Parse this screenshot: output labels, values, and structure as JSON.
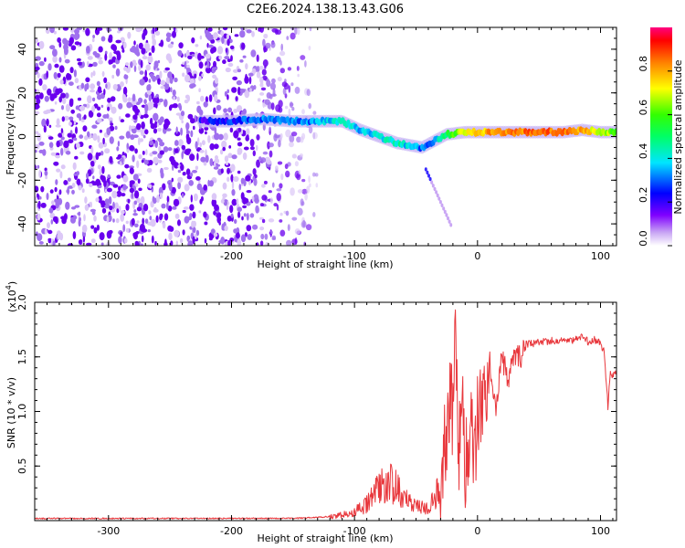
{
  "figure_title": "C2E6.2024.138.13.43.G06",
  "colors": {
    "axis": "#000000",
    "snr_line": "#e8373c",
    "spectro_low": "#8a2be2",
    "background": "#ffffff"
  },
  "chart_data": [
    {
      "type": "heatmap",
      "title": "C2E6.2024.138.13.43.G06",
      "xlabel": "Height of straight line (km)",
      "ylabel": "Frequency (Hz)",
      "xlim": [
        -360,
        113
      ],
      "ylim": [
        -50,
        50
      ],
      "xticks": [
        -300,
        -200,
        -100,
        0,
        100
      ],
      "xtick_labels": [
        "-300",
        "-200",
        "-100",
        "0",
        "100"
      ],
      "yticks": [
        40,
        20,
        0,
        -20,
        -40
      ],
      "ytick_labels": [
        "40",
        "20",
        "0",
        "-20",
        "-40"
      ],
      "colorbar": {
        "label": "Normalized spectral amplitude",
        "range": [
          0,
          1
        ],
        "ticks": [
          0.0,
          0.2,
          0.4,
          0.6,
          0.8
        ],
        "tick_labels": [
          "0.0",
          "0.2",
          "0.4",
          "0.6",
          "0.8"
        ]
      },
      "ridge": {
        "x": [
          -225,
          -200,
          -175,
          -150,
          -125,
          -110,
          -95,
          -80,
          -65,
          -55,
          -45,
          -35,
          -25,
          -10,
          10,
          40,
          70,
          85,
          100,
          113
        ],
        "freq": [
          7,
          7,
          8,
          7,
          7,
          7,
          3,
          0,
          -3,
          -4,
          -5,
          -2,
          1,
          2,
          2,
          2,
          2,
          3,
          2,
          2
        ],
        "amplitude": [
          0.2,
          0.25,
          0.3,
          0.3,
          0.35,
          0.4,
          0.35,
          0.4,
          0.45,
          0.35,
          0.3,
          0.35,
          0.5,
          0.7,
          0.8,
          0.85,
          0.85,
          0.8,
          0.7,
          0.6
        ]
      },
      "noise_region_x": [
        -360,
        -130
      ]
    },
    {
      "type": "line",
      "title": "",
      "xlabel": "Height of straight line (km)",
      "ylabel": "SNR (10 * v/v)",
      "scale_note": "(x10",
      "scale_exp": "4",
      "scale_close": ")",
      "xlim": [
        -360,
        113
      ],
      "ylim": [
        0,
        2.0
      ],
      "xticks": [
        -300,
        -200,
        -100,
        0,
        100
      ],
      "xtick_labels": [
        "-300",
        "-200",
        "-100",
        "0",
        "100"
      ],
      "yticks": [
        0.5,
        1.0,
        1.5,
        2.0
      ],
      "ytick_labels": [
        "0.5",
        "1.0",
        "1.5",
        "2.0"
      ],
      "series": [
        {
          "name": "SNR",
          "x": [
            -360,
            -300,
            -250,
            -200,
            -150,
            -130,
            -115,
            -100,
            -90,
            -80,
            -72,
            -65,
            -58,
            -50,
            -45,
            -40,
            -35,
            -30,
            -25,
            -22,
            -20,
            -18,
            -15,
            -12,
            -10,
            -6,
            -3,
            0,
            5,
            10,
            15,
            20,
            25,
            30,
            35,
            40,
            50,
            60,
            70,
            80,
            85,
            90,
            95,
            100,
            103,
            106,
            108,
            110,
            113
          ],
          "values": [
            0.02,
            0.02,
            0.02,
            0.02,
            0.02,
            0.03,
            0.04,
            0.08,
            0.15,
            0.3,
            0.38,
            0.28,
            0.2,
            0.15,
            0.12,
            0.1,
            0.2,
            0.35,
            0.8,
            1.2,
            0.9,
            1.6,
            0.6,
            1.1,
            0.4,
            0.9,
            0.55,
            1.0,
            1.25,
            1.45,
            1.05,
            1.5,
            1.3,
            1.55,
            1.5,
            1.62,
            1.63,
            1.65,
            1.65,
            1.66,
            1.68,
            1.64,
            1.66,
            1.63,
            1.55,
            1.05,
            1.35,
            1.33,
            1.35
          ]
        }
      ]
    }
  ]
}
